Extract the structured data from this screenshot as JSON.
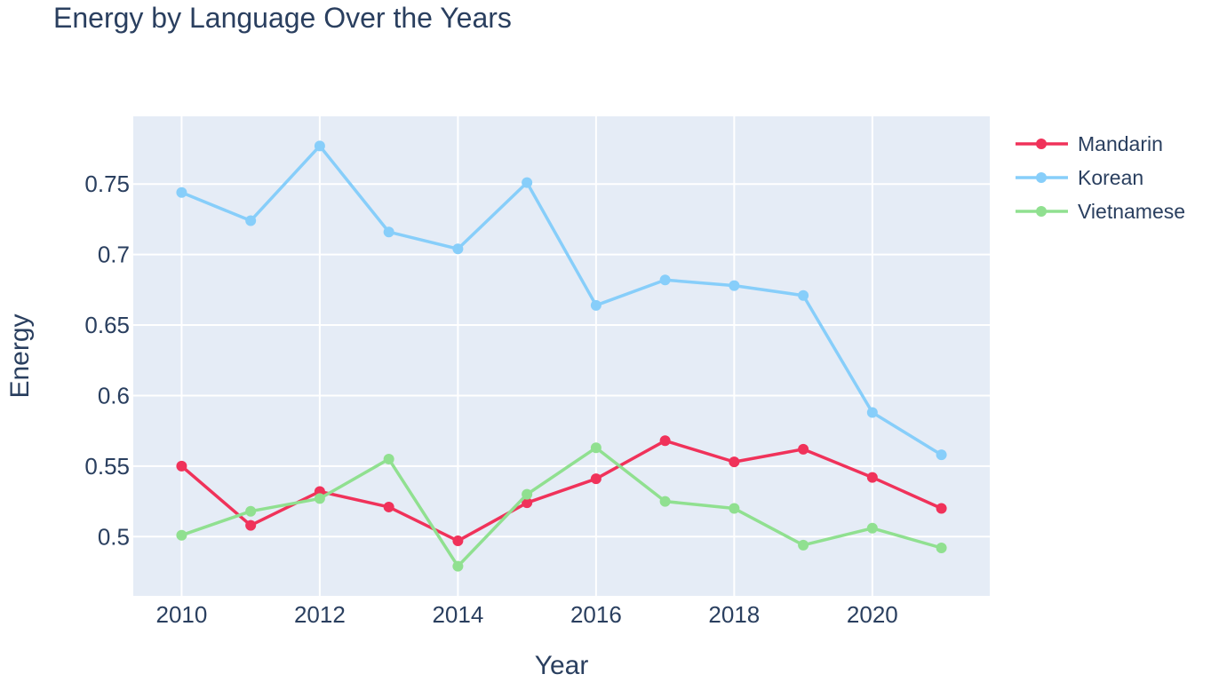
{
  "chart_data": {
    "type": "line",
    "title": "Energy by Language Over the Years",
    "xlabel": "Year",
    "ylabel": "Energy",
    "x": [
      2010,
      2011,
      2012,
      2013,
      2014,
      2015,
      2016,
      2017,
      2018,
      2019,
      2020,
      2021
    ],
    "xlim": [
      2009.3,
      2021.7
    ],
    "ylim": [
      0.458,
      0.798
    ],
    "x_ticks": [
      2010,
      2012,
      2014,
      2016,
      2018,
      2020
    ],
    "x_tick_labels": [
      "2010",
      "2012",
      "2014",
      "2016",
      "2018",
      "2020"
    ],
    "y_ticks": [
      0.5,
      0.55,
      0.6,
      0.65,
      0.7,
      0.75
    ],
    "y_tick_labels": [
      "0.5",
      "0.55",
      "0.6",
      "0.65",
      "0.7",
      "0.75"
    ],
    "grid": true,
    "legend_position": "top-right",
    "series": [
      {
        "name": "Mandarin",
        "color": "#f0325a",
        "values": [
          0.55,
          0.508,
          0.532,
          0.521,
          0.497,
          0.524,
          0.541,
          0.568,
          0.553,
          0.562,
          0.542,
          0.52
        ]
      },
      {
        "name": "Korean",
        "color": "#87cefa",
        "values": [
          0.744,
          0.724,
          0.777,
          0.716,
          0.704,
          0.751,
          0.664,
          0.682,
          0.678,
          0.671,
          0.588,
          0.558
        ]
      },
      {
        "name": "Vietnamese",
        "color": "#90e090",
        "values": [
          0.501,
          0.518,
          0.527,
          0.555,
          0.479,
          0.53,
          0.563,
          0.525,
          0.52,
          0.494,
          0.506,
          0.492
        ]
      }
    ]
  }
}
